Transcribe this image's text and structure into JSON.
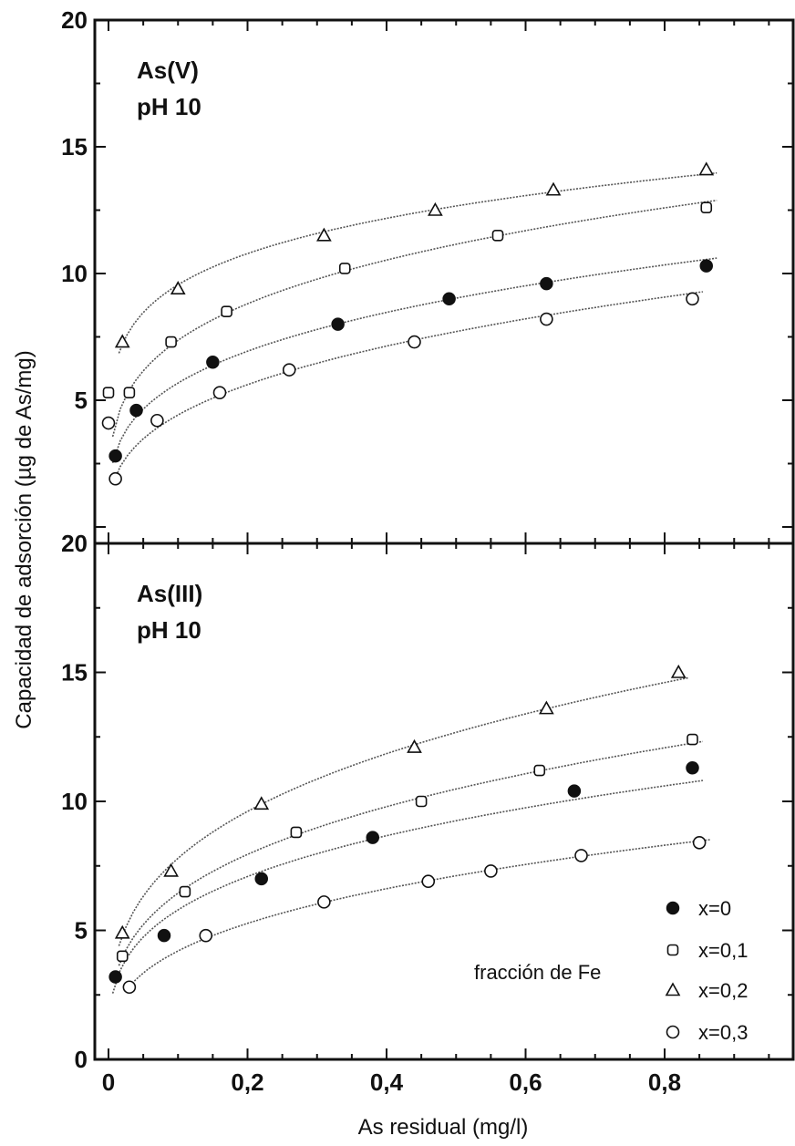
{
  "chart_data": {
    "type": "scatter",
    "xlabel": "As residual (mg/l)",
    "ylabel": "Capacidad de adsorción (µg de As/mg)",
    "xlim": [
      -0.02,
      1.0
    ],
    "x_tick_labels": [
      {
        "value": 0,
        "label": "0"
      },
      {
        "value": 0.2,
        "label": "0,2"
      },
      {
        "value": 0.4,
        "label": "0,4"
      },
      {
        "value": 0.6,
        "label": "0,6"
      },
      {
        "value": 0.8,
        "label": "0,8"
      }
    ],
    "legend": {
      "title": "fracción de Fe",
      "position": "bottom-right",
      "entries": [
        {
          "label": "x=0",
          "marker": "filled-circle"
        },
        {
          "label": "x=0,1",
          "marker": "open-square"
        },
        {
          "label": "x=0,2",
          "marker": "open-triangle"
        },
        {
          "label": "x=0,3",
          "marker": "open-circle"
        }
      ]
    },
    "panels": [
      {
        "label_line1": "As(V)",
        "label_line2": "pH 10",
        "ylim": [
          0,
          20
        ],
        "y_tick_labels": [
          {
            "value": 5,
            "label": "5"
          },
          {
            "value": 10,
            "label": "10"
          },
          {
            "value": 15,
            "label": "15"
          },
          {
            "value": 20,
            "label": "20"
          }
        ],
        "series": [
          {
            "marker": "filled-circle",
            "x": [
              0.01,
              0.04,
              0.15,
              0.33,
              0.49,
              0.63,
              0.86
            ],
            "y": [
              2.8,
              4.6,
              6.5,
              8.0,
              9.0,
              9.6,
              10.3
            ]
          },
          {
            "marker": "open-square",
            "x": [
              0.0,
              0.03,
              0.09,
              0.17,
              0.34,
              0.56,
              0.86
            ],
            "y": [
              5.3,
              5.3,
              7.3,
              8.5,
              10.2,
              11.5,
              12.6
            ]
          },
          {
            "marker": "open-triangle",
            "x": [
              0.02,
              0.1,
              0.31,
              0.47,
              0.64,
              0.86
            ],
            "y": [
              7.3,
              9.4,
              11.5,
              12.5,
              13.3,
              14.1
            ]
          },
          {
            "marker": "open-circle",
            "x": [
              0.0,
              0.01,
              0.07,
              0.16,
              0.26,
              0.44,
              0.63,
              0.84
            ],
            "y": [
              4.1,
              1.9,
              4.2,
              5.3,
              6.2,
              7.3,
              8.2,
              9.0
            ]
          }
        ]
      },
      {
        "label_line1": "As(III)",
        "label_line2": "pH 10",
        "ylim": [
          0,
          20
        ],
        "y_tick_labels": [
          {
            "value": 0,
            "label": "0"
          },
          {
            "value": 5,
            "label": "5"
          },
          {
            "value": 10,
            "label": "10"
          },
          {
            "value": 15,
            "label": "15"
          },
          {
            "value": 20,
            "label": "20"
          }
        ],
        "series": [
          {
            "marker": "filled-circle",
            "x": [
              0.01,
              0.08,
              0.22,
              0.38,
              0.67,
              0.84
            ],
            "y": [
              3.2,
              4.8,
              7.0,
              8.6,
              10.4,
              11.3
            ]
          },
          {
            "marker": "open-square",
            "x": [
              0.02,
              0.11,
              0.27,
              0.45,
              0.62,
              0.84
            ],
            "y": [
              4.0,
              6.5,
              8.8,
              10.0,
              11.2,
              12.4
            ]
          },
          {
            "marker": "open-triangle",
            "x": [
              0.02,
              0.09,
              0.22,
              0.44,
              0.63,
              0.82
            ],
            "y": [
              4.9,
              7.3,
              9.9,
              12.1,
              13.6,
              15.0
            ]
          },
          {
            "marker": "open-circle",
            "x": [
              0.03,
              0.14,
              0.31,
              0.46,
              0.55,
              0.68,
              0.85
            ],
            "y": [
              2.8,
              4.8,
              6.1,
              6.9,
              7.3,
              7.9,
              8.4
            ]
          }
        ]
      }
    ]
  }
}
